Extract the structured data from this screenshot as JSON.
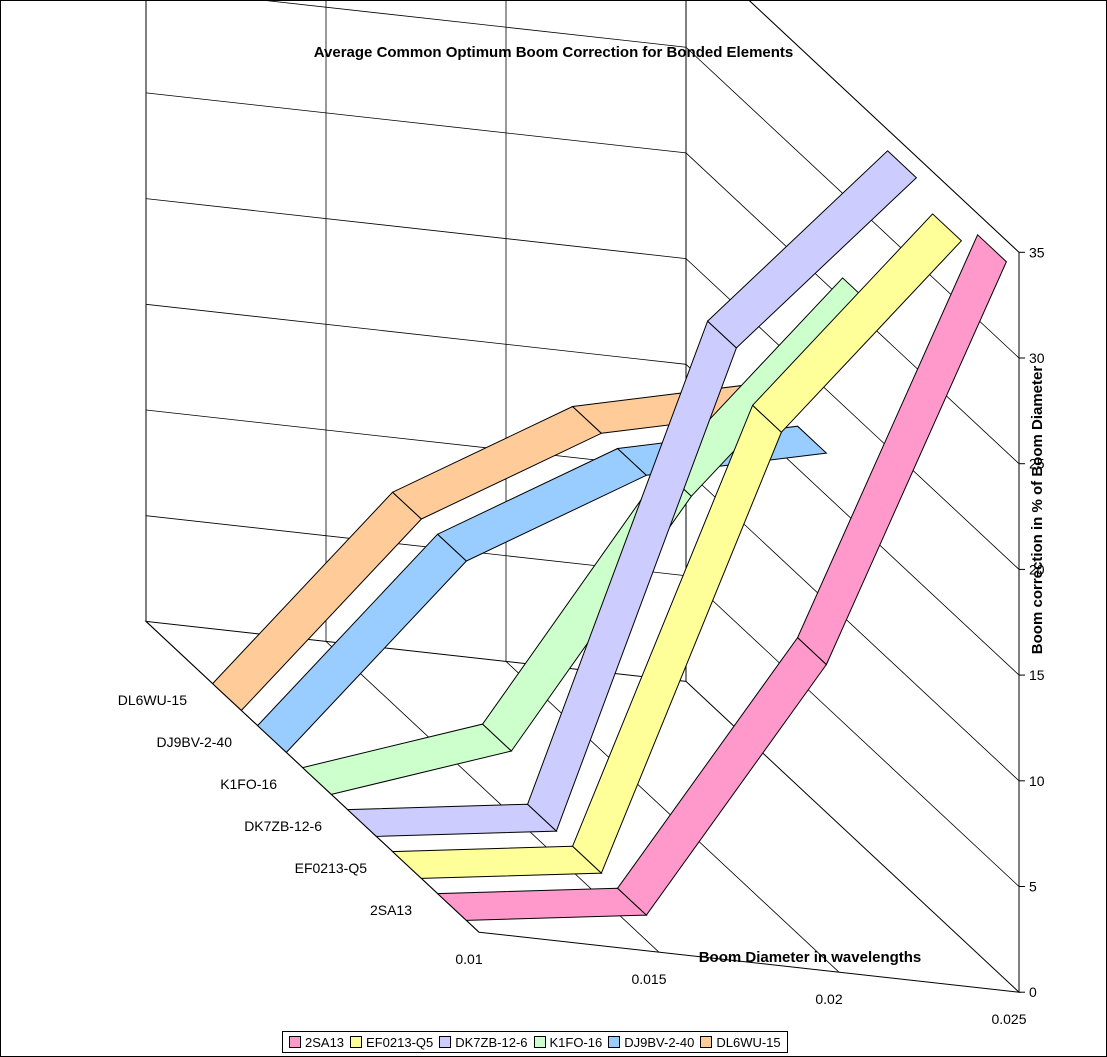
{
  "chart_data": {
    "type": "line",
    "style": "3d-ribbon",
    "title": "Average Common Optimum Boom Correction for Bonded Elements",
    "xlabel": "Boom Diameter in wavelengths",
    "ylabel": "Boom correction in % of Boom Diameter",
    "x": [
      0.01,
      0.015,
      0.02,
      0.025
    ],
    "x_ticks": [
      "0.01",
      "0.015",
      "0.02",
      "0.025"
    ],
    "ylim": [
      0,
      35
    ],
    "y_ticks": [
      "0",
      "5",
      "10",
      "15",
      "20",
      "25",
      "30",
      "35"
    ],
    "depth_labels": [
      "DL6WU-15",
      "DJ9BV-2-40",
      "K1FO-16",
      "DK7ZB-12-6",
      "EF0213-Q5",
      "2SA13"
    ],
    "grid": true,
    "legend_position": "bottom",
    "series": [
      {
        "name": "2SA13",
        "color": "#ff99cc",
        "values": [
          0,
          1.2,
          14,
          34
        ]
      },
      {
        "name": "EF0213-Q5",
        "color": "#ffff99",
        "values": [
          0,
          1.2,
          23,
          33
        ]
      },
      {
        "name": "DK7ZB-12-6",
        "color": "#ccccff",
        "values": [
          0,
          1.2,
          25,
          34
        ]
      },
      {
        "name": "K1FO-16",
        "color": "#ccffcc",
        "values": [
          0,
          3,
          16,
          26
        ]
      },
      {
        "name": "DJ9BV-2-40",
        "color": "#99ccff",
        "values": [
          0,
          10,
          15,
          17
        ]
      },
      {
        "name": "DL6WU-15",
        "color": "#ffcc99",
        "values": [
          0,
          10,
          15,
          17
        ]
      }
    ]
  }
}
